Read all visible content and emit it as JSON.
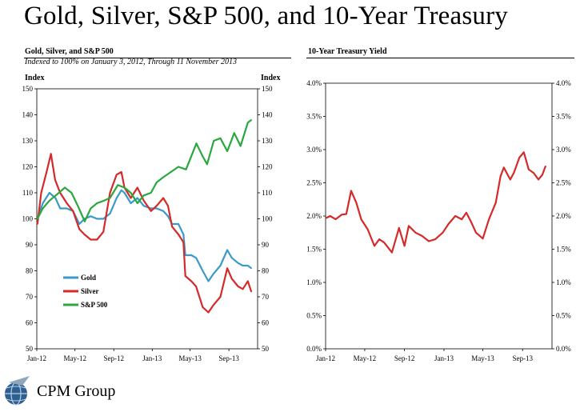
{
  "header": {
    "title": "Gold, Silver, S&P 500, and 10-Year Treasury"
  },
  "footer": {
    "company": "CPM Group"
  },
  "chart_data": [
    {
      "type": "line",
      "title": "Gold, Silver, and S&P 500",
      "subtitle": "Indexed to 100% on  January 3, 2012, Through 11 November 2013",
      "ylabel_left": "Index",
      "ylabel_right": "Index",
      "ylim": [
        50,
        150
      ],
      "yticks": [
        "50",
        "60",
        "70",
        "80",
        "90",
        "100",
        "110",
        "120",
        "130",
        "140",
        "150"
      ],
      "x_ticks": [
        "Jan-12",
        "May-12",
        "Sep-12",
        "Jan-13",
        "May-13",
        "Sep-13"
      ],
      "grid": false,
      "legend_position": "bottom-left",
      "series": [
        {
          "name": "Gold",
          "color": "#3b9ac8",
          "x": [
            "2012-01-03",
            "2012-01-20",
            "2012-02-10",
            "2012-02-29",
            "2012-03-15",
            "2012-04-05",
            "2012-04-25",
            "2012-05-15",
            "2012-05-31",
            "2012-06-20",
            "2012-07-10",
            "2012-07-30",
            "2012-08-20",
            "2012-09-10",
            "2012-09-25",
            "2012-10-05",
            "2012-10-25",
            "2012-11-15",
            "2012-12-05",
            "2012-12-28",
            "2013-01-15",
            "2013-02-05",
            "2013-02-20",
            "2013-03-05",
            "2013-03-25",
            "2013-04-10",
            "2013-04-16",
            "2013-05-05",
            "2013-05-20",
            "2013-06-10",
            "2013-06-28",
            "2013-07-15",
            "2013-08-05",
            "2013-08-27",
            "2013-09-10",
            "2013-09-30",
            "2013-10-15",
            "2013-10-31",
            "2013-11-11"
          ],
          "y": [
            100,
            106,
            110,
            108,
            104,
            104,
            103,
            98,
            100,
            101,
            100,
            100,
            102,
            108,
            111,
            110,
            106,
            108,
            105,
            104,
            104,
            103,
            101,
            98,
            98,
            94,
            86,
            86,
            85,
            80,
            76,
            79,
            82,
            88,
            85,
            83,
            82,
            82,
            81
          ]
        },
        {
          "name": "Silver",
          "color": "#d42a2a",
          "x": [
            "2012-01-03",
            "2012-01-15",
            "2012-02-01",
            "2012-02-15",
            "2012-02-28",
            "2012-03-15",
            "2012-04-05",
            "2012-04-25",
            "2012-05-15",
            "2012-05-31",
            "2012-06-20",
            "2012-07-10",
            "2012-07-30",
            "2012-08-20",
            "2012-09-10",
            "2012-09-25",
            "2012-10-05",
            "2012-10-25",
            "2012-11-15",
            "2012-12-05",
            "2012-12-28",
            "2013-01-15",
            "2013-02-05",
            "2013-02-20",
            "2013-03-05",
            "2013-03-25",
            "2013-04-10",
            "2013-04-16",
            "2013-05-05",
            "2013-05-20",
            "2013-06-10",
            "2013-06-28",
            "2013-07-15",
            "2013-08-05",
            "2013-08-27",
            "2013-09-10",
            "2013-09-30",
            "2013-10-15",
            "2013-10-31",
            "2013-11-11"
          ],
          "y": [
            98,
            110,
            118,
            125,
            115,
            110,
            106,
            103,
            96,
            94,
            92,
            92,
            95,
            110,
            117,
            118,
            112,
            108,
            112,
            107,
            103,
            105,
            108,
            105,
            97,
            94,
            91,
            78,
            76,
            74,
            66,
            64,
            67,
            70,
            81,
            77,
            74,
            73,
            76,
            72
          ]
        },
        {
          "name": "S&P 500",
          "color": "#2aa83f",
          "x": [
            "2012-01-03",
            "2012-01-20",
            "2012-02-10",
            "2012-03-01",
            "2012-03-30",
            "2012-04-20",
            "2012-05-10",
            "2012-06-01",
            "2012-06-20",
            "2012-07-10",
            "2012-08-01",
            "2012-08-20",
            "2012-09-14",
            "2012-10-05",
            "2012-10-25",
            "2012-11-15",
            "2012-12-05",
            "2012-12-28",
            "2013-01-15",
            "2013-02-05",
            "2013-03-01",
            "2013-03-25",
            "2013-04-18",
            "2013-05-21",
            "2013-06-10",
            "2013-06-24",
            "2013-07-15",
            "2013-08-05",
            "2013-08-27",
            "2013-09-18",
            "2013-10-08",
            "2013-10-31",
            "2013-11-11"
          ],
          "y": [
            100,
            104,
            107,
            109,
            112,
            110,
            105,
            99,
            104,
            106,
            107,
            108,
            113,
            112,
            110,
            106,
            109,
            110,
            114,
            116,
            118,
            120,
            119,
            129,
            124,
            121,
            130,
            131,
            126,
            133,
            128,
            137,
            138
          ]
        }
      ]
    },
    {
      "type": "line",
      "title": "10-Year Treasury Yield",
      "ylim": [
        0,
        4
      ],
      "yticks": [
        "0.0%",
        "0.5%",
        "1.0%",
        "1.5%",
        "2.0%",
        "2.5%",
        "3.0%",
        "3.5%",
        "4.0%"
      ],
      "x_ticks": [
        "Jan-12",
        "May-12",
        "Sep-12",
        "Jan-13",
        "May-13",
        "Sep-13"
      ],
      "grid": false,
      "series": [
        {
          "color": "#d42a2a",
          "x": [
            "2012-01-03",
            "2012-01-15",
            "2012-02-01",
            "2012-02-20",
            "2012-03-05",
            "2012-03-20",
            "2012-04-05",
            "2012-04-20",
            "2012-05-10",
            "2012-05-31",
            "2012-06-15",
            "2012-06-30",
            "2012-07-24",
            "2012-08-15",
            "2012-09-01",
            "2012-09-14",
            "2012-10-05",
            "2012-10-25",
            "2012-11-15",
            "2012-12-05",
            "2012-12-28",
            "2013-01-15",
            "2013-02-05",
            "2013-02-25",
            "2013-03-11",
            "2013-03-25",
            "2013-04-10",
            "2013-05-01",
            "2013-05-20",
            "2013-06-10",
            "2013-06-25",
            "2013-07-05",
            "2013-07-25",
            "2013-08-05",
            "2013-08-22",
            "2013-09-05",
            "2013-09-20",
            "2013-10-05",
            "2013-10-20",
            "2013-11-01",
            "2013-11-11"
          ],
          "y": [
            1.97,
            2.0,
            1.95,
            2.02,
            2.03,
            2.38,
            2.2,
            1.95,
            1.8,
            1.55,
            1.65,
            1.6,
            1.45,
            1.82,
            1.55,
            1.85,
            1.75,
            1.7,
            1.62,
            1.65,
            1.75,
            1.88,
            2.0,
            1.95,
            2.05,
            1.92,
            1.75,
            1.66,
            1.95,
            2.2,
            2.6,
            2.73,
            2.55,
            2.65,
            2.88,
            2.96,
            2.7,
            2.65,
            2.55,
            2.62,
            2.75
          ]
        }
      ]
    }
  ]
}
